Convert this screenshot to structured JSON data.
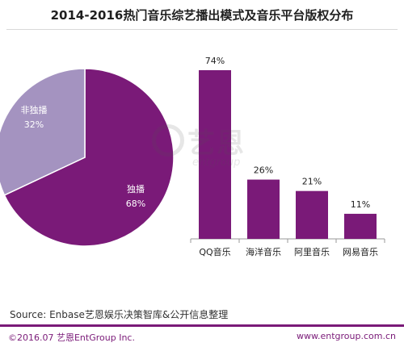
{
  "chart_data": [
    {
      "type": "pie",
      "categories": [
        "独播",
        "非独播"
      ],
      "values": [
        68,
        32
      ],
      "value_labels": [
        "68%",
        "32%"
      ],
      "colors": [
        "#7a1a78",
        "#a493c0"
      ]
    },
    {
      "type": "bar",
      "categories": [
        "QQ音乐",
        "海洋音乐",
        "阿里音乐",
        "网易音乐"
      ],
      "values": [
        74,
        26,
        21,
        11
      ],
      "value_labels": [
        "74%",
        "26%",
        "21%",
        "11%"
      ],
      "ylim": [
        0,
        80
      ],
      "grid": false,
      "color": "#7a1a78"
    }
  ],
  "title": "2014-2016热门音乐综艺播出模式及音乐平台版权分布",
  "watermark": {
    "cn": "艺恩",
    "en": "entgroup"
  },
  "source": "Source: Enbase艺恩娱乐决策智库&公开信息整理",
  "footer": {
    "left": "©2016.07 艺恩EntGroup Inc.",
    "right": "www.entgroup.com.cn"
  },
  "colors": {
    "accent": "#7a1a78",
    "pie_light": "#a493c0",
    "axis": "#999999"
  }
}
